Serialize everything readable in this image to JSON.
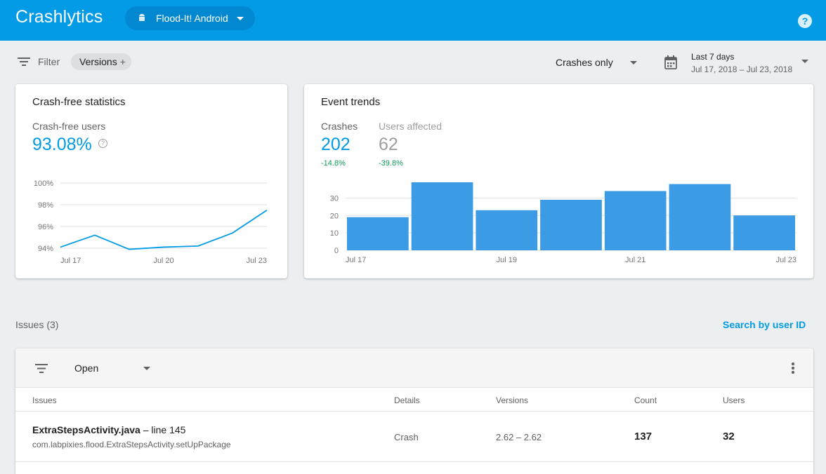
{
  "header": {
    "brand": "Crashlytics",
    "app_name": "Flood-It! Android",
    "help_glyph": "?"
  },
  "filterbar": {
    "filter_label": "Filter",
    "chip_label": "Versions",
    "chip_plus": "+",
    "event_type": "Crashes only",
    "date_title": "Last 7 days",
    "date_range": "Jul 17, 2018 – Jul 23, 2018"
  },
  "crash_free": {
    "title": "Crash-free statistics",
    "metric_label": "Crash-free users",
    "metric_value": "93.08%",
    "info_glyph": "?"
  },
  "event_trends": {
    "title": "Event trends",
    "crashes_label": "Crashes",
    "crashes_value": "202",
    "crashes_delta": "-14.8%",
    "users_label": "Users affected",
    "users_value": "62",
    "users_delta": "-39.8%"
  },
  "chart_data": [
    {
      "type": "line",
      "x": [
        "Jul 17",
        "Jul 18",
        "Jul 19",
        "Jul 20",
        "Jul 21",
        "Jul 22",
        "Jul 23"
      ],
      "x_tick_labels": [
        "Jul 17",
        "Jul 20",
        "Jul 23"
      ],
      "values": [
        94.1,
        95.2,
        93.9,
        94.1,
        94.2,
        95.4,
        97.5
      ],
      "ylim": [
        94,
        100
      ],
      "y_ticks": [
        "94%",
        "96%",
        "98%",
        "100%"
      ],
      "y_tick_values": [
        94,
        96,
        98,
        100
      ],
      "color": "#039be5",
      "grid": true
    },
    {
      "type": "bar",
      "categories": [
        "Jul 17",
        "Jul 18",
        "Jul 19",
        "Jul 20",
        "Jul 21",
        "Jul 22",
        "Jul 23"
      ],
      "x_tick_labels": [
        "Jul 17",
        "Jul 19",
        "Jul 21",
        "Jul 23"
      ],
      "values": [
        19,
        39,
        23,
        29,
        34,
        38,
        20
      ],
      "ylim": [
        0,
        39
      ],
      "y_ticks": [
        "0",
        "10",
        "20",
        "30"
      ],
      "y_tick_values": [
        0,
        10,
        20,
        30
      ],
      "color": "#3b9be5",
      "grid": true
    }
  ],
  "issues": {
    "heading": "Issues (3)",
    "search_link": "Search by user ID",
    "status_filter": "Open",
    "columns": [
      "Issues",
      "Details",
      "Versions",
      "Count",
      "Users"
    ],
    "rows": [
      {
        "file": "ExtraStepsActivity.java",
        "line": " – line 145",
        "method": "com.labpixies.flood.ExtraStepsActivity.setUpPackage",
        "details": "Crash",
        "versions": "2.62 – 2.62",
        "count": "137",
        "users": "32"
      }
    ]
  }
}
